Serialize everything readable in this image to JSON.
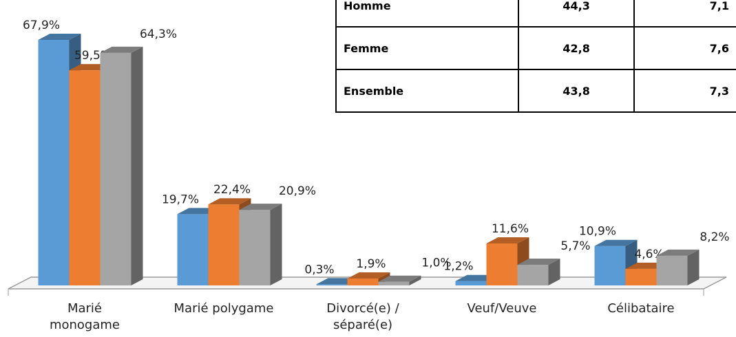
{
  "chart_data": {
    "type": "bar3d",
    "categories": [
      "Marié monogame",
      "Marié polygame",
      "Divorcé(e) / séparé(e)",
      "Veuf/Veuve",
      "Célibataire"
    ],
    "series": [
      {
        "color": "#5b9bd5",
        "values": [
          67.9,
          19.7,
          0.3,
          1.2,
          10.9
        ],
        "value_labels": [
          "67,9%",
          "19,7%",
          "0,3%",
          "1,2%",
          "10,9%"
        ]
      },
      {
        "color": "#ed7d31",
        "values": [
          59.5,
          22.4,
          1.9,
          11.6,
          4.6
        ],
        "value_labels": [
          "59,5%",
          "22,4%",
          "1,9%",
          "11,6%",
          "4,6%"
        ]
      },
      {
        "color": "#a5a5a5",
        "values": [
          64.3,
          20.9,
          1.0,
          5.7,
          8.2
        ],
        "value_labels": [
          "64,3%",
          "20,9%",
          "1,0%",
          "5,7%",
          "8,2%"
        ]
      }
    ]
  },
  "table": {
    "rows": [
      [
        "Homme",
        "44,3",
        "7,1"
      ],
      [
        "Femme",
        "42,8",
        "7,6"
      ],
      [
        "Ensemble",
        "43,8",
        "7,3"
      ]
    ]
  }
}
